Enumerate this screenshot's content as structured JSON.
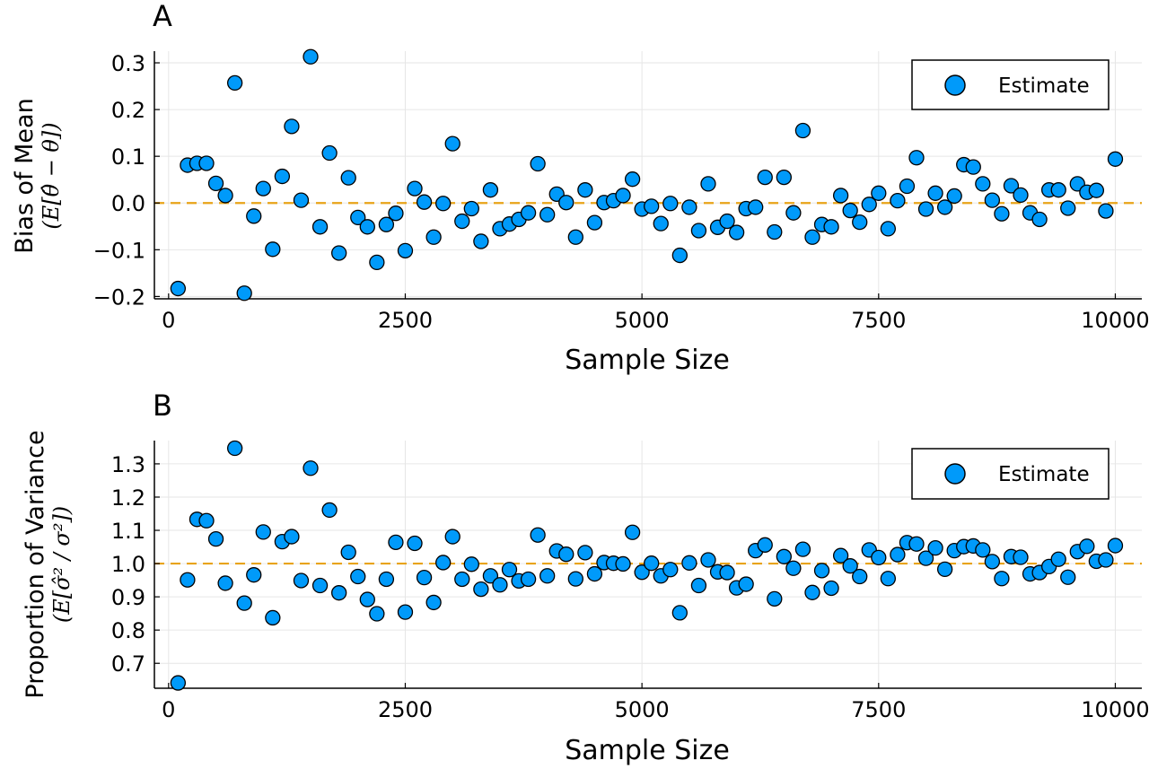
{
  "chart_data": [
    {
      "type": "scatter",
      "panel_label": "A",
      "xlabel": "Sample Size",
      "ylabel": "Bias of Mean",
      "ylabel_sub": "(E[θ̂ − θ])",
      "xlim": [
        -150,
        10280
      ],
      "ylim": [
        -0.205,
        0.325
      ],
      "xticks": [
        0,
        2500,
        5000,
        7500,
        10000
      ],
      "xtick_labels": [
        "0",
        "2500",
        "5000",
        "7500",
        "10000"
      ],
      "yticks": [
        -0.2,
        -0.1,
        0.0,
        0.1,
        0.2,
        0.3
      ],
      "ytick_labels": [
        "−0.2",
        "−0.1",
        "0.0",
        "0.1",
        "0.2",
        "0.3"
      ],
      "reference_line": 0.0,
      "grid": true,
      "legend": "top-right",
      "series": [
        {
          "name": "Estimate",
          "x": [
            100,
            200,
            300,
            400,
            500,
            600,
            700,
            800,
            900,
            1000,
            1100,
            1200,
            1300,
            1400,
            1500,
            1600,
            1700,
            1800,
            1900,
            2000,
            2100,
            2200,
            2300,
            2400,
            2500,
            2600,
            2700,
            2800,
            2900,
            3000,
            3100,
            3200,
            3300,
            3400,
            3500,
            3600,
            3700,
            3800,
            3900,
            4000,
            4100,
            4200,
            4300,
            4400,
            4500,
            4600,
            4700,
            4800,
            4900,
            5000,
            5100,
            5200,
            5300,
            5400,
            5500,
            5600,
            5700,
            5800,
            5900,
            6000,
            6100,
            6200,
            6300,
            6400,
            6500,
            6600,
            6700,
            6800,
            6900,
            7000,
            7100,
            7200,
            7300,
            7400,
            7500,
            7600,
            7700,
            7800,
            7900,
            8000,
            8100,
            8200,
            8300,
            8400,
            8500,
            8600,
            8700,
            8800,
            8900,
            9000,
            9100,
            9200,
            9300,
            9400,
            9500,
            9600,
            9700,
            9800,
            9900,
            10000
          ],
          "y": [
            -0.183,
            0.081,
            0.085,
            0.085,
            0.042,
            0.016,
            0.257,
            -0.193,
            -0.028,
            0.031,
            -0.099,
            0.057,
            0.164,
            0.006,
            0.313,
            -0.051,
            0.107,
            -0.107,
            0.054,
            -0.031,
            -0.051,
            -0.127,
            -0.046,
            -0.022,
            -0.102,
            0.031,
            0.002,
            -0.073,
            -0.001,
            0.127,
            -0.039,
            -0.012,
            -0.082,
            0.028,
            -0.055,
            -0.045,
            -0.035,
            -0.021,
            0.084,
            -0.025,
            0.019,
            0.001,
            -0.073,
            0.028,
            -0.042,
            0.001,
            0.005,
            0.016,
            0.051,
            -0.013,
            -0.007,
            -0.044,
            -0.001,
            -0.112,
            -0.009,
            -0.059,
            0.041,
            -0.052,
            -0.039,
            -0.063,
            -0.012,
            -0.009,
            0.055,
            -0.062,
            0.055,
            -0.021,
            0.155,
            -0.073,
            -0.046,
            -0.051,
            0.016,
            -0.016,
            -0.041,
            -0.003,
            0.021,
            -0.055,
            0.005,
            0.036,
            0.097,
            -0.013,
            0.021,
            -0.009,
            0.015,
            0.082,
            0.077,
            0.041,
            0.006,
            -0.023,
            0.037,
            0.017,
            -0.021,
            -0.035,
            0.028,
            0.028,
            -0.011,
            0.041,
            0.023,
            0.027,
            -0.017,
            0.094
          ]
        }
      ]
    },
    {
      "type": "scatter",
      "panel_label": "B",
      "xlabel": "Sample Size",
      "ylabel": "Proportion of Variance",
      "ylabel_sub": "(E[σ̂² / σ²])",
      "xlim": [
        -150,
        10280
      ],
      "ylim": [
        0.625,
        1.37
      ],
      "xticks": [
        0,
        2500,
        5000,
        7500,
        10000
      ],
      "xtick_labels": [
        "0",
        "2500",
        "5000",
        "7500",
        "10000"
      ],
      "yticks": [
        0.7,
        0.8,
        0.9,
        1.0,
        1.1,
        1.2,
        1.3
      ],
      "ytick_labels": [
        "0.7",
        "0.8",
        "0.9",
        "1.0",
        "1.1",
        "1.2",
        "1.3"
      ],
      "reference_line": 1.0,
      "grid": true,
      "legend": "top-right",
      "series": [
        {
          "name": "Estimate",
          "x": [
            100,
            200,
            300,
            400,
            500,
            600,
            700,
            800,
            900,
            1000,
            1100,
            1200,
            1300,
            1400,
            1500,
            1600,
            1700,
            1800,
            1900,
            2000,
            2100,
            2200,
            2300,
            2400,
            2500,
            2600,
            2700,
            2800,
            2900,
            3000,
            3100,
            3200,
            3300,
            3400,
            3500,
            3600,
            3700,
            3800,
            3900,
            4000,
            4100,
            4200,
            4300,
            4400,
            4500,
            4600,
            4700,
            4800,
            4900,
            5000,
            5100,
            5200,
            5300,
            5400,
            5500,
            5600,
            5700,
            5800,
            5900,
            6000,
            6100,
            6200,
            6300,
            6400,
            6500,
            6600,
            6700,
            6800,
            6900,
            7000,
            7100,
            7200,
            7300,
            7400,
            7500,
            7600,
            7700,
            7800,
            7900,
            8000,
            8100,
            8200,
            8300,
            8400,
            8500,
            8600,
            8700,
            8800,
            8900,
            9000,
            9100,
            9200,
            9300,
            9400,
            9500,
            9600,
            9700,
            9800,
            9900,
            10000
          ],
          "y": [
            0.641,
            0.951,
            1.133,
            1.129,
            1.074,
            0.941,
            1.347,
            0.881,
            0.966,
            1.095,
            0.837,
            1.066,
            1.081,
            0.949,
            1.287,
            0.934,
            1.161,
            0.912,
            1.034,
            0.961,
            0.892,
            0.849,
            0.953,
            1.064,
            0.854,
            1.061,
            0.958,
            0.883,
            1.003,
            1.081,
            0.953,
            0.998,
            0.923,
            0.963,
            0.936,
            0.982,
            0.948,
            0.953,
            1.086,
            0.963,
            1.038,
            1.028,
            0.954,
            1.033,
            0.969,
            1.003,
            1.001,
            0.999,
            1.094,
            0.974,
            1.001,
            0.963,
            0.982,
            0.852,
            1.002,
            0.934,
            1.011,
            0.975,
            0.973,
            0.927,
            0.938,
            1.039,
            1.056,
            0.894,
            1.021,
            0.986,
            1.043,
            0.913,
            0.979,
            0.926,
            1.024,
            0.993,
            0.961,
            1.041,
            1.018,
            0.955,
            1.027,
            1.063,
            1.059,
            1.016,
            1.047,
            0.983,
            1.039,
            1.051,
            1.053,
            1.041,
            1.006,
            0.955,
            1.021,
            1.019,
            0.969,
            0.973,
            0.991,
            1.013,
            0.959,
            1.036,
            1.052,
            1.007,
            1.011,
            1.054
          ]
        }
      ]
    }
  ],
  "style": {
    "marker_fill": "#009AFA",
    "marker_stroke": "#000000",
    "reference_line_color": "#E8A317",
    "grid_color": "#E6E6E6",
    "axis_color": "#000000"
  }
}
